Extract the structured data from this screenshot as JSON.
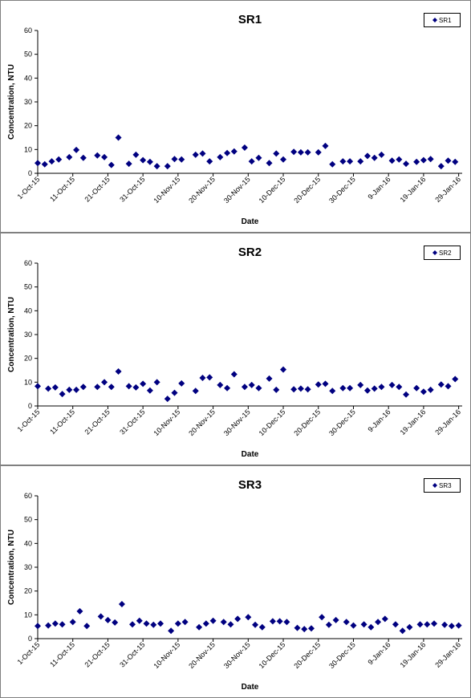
{
  "chart_data": [
    {
      "type": "scatter",
      "title": "SR1",
      "xlabel": "Date",
      "ylabel": "Concentration, NTU",
      "ylim": [
        0,
        60
      ],
      "y_ticks": [
        "0",
        "10",
        "20",
        "30",
        "40",
        "50",
        "60"
      ],
      "x_range": [
        "2015-10-01",
        "2016-01-30"
      ],
      "x_ticks": [
        {
          "date": "2015-10-01",
          "label": "1-Oct-15"
        },
        {
          "date": "2015-10-11",
          "label": "11-Oct-15"
        },
        {
          "date": "2015-10-21",
          "label": "21-Oct-15"
        },
        {
          "date": "2015-10-31",
          "label": "31-Oct-15"
        },
        {
          "date": "2015-11-10",
          "label": "10-Nov-15"
        },
        {
          "date": "2015-11-20",
          "label": "20-Nov-15"
        },
        {
          "date": "2015-11-30",
          "label": "30-Nov-15"
        },
        {
          "date": "2015-12-10",
          "label": "10-Dec-15"
        },
        {
          "date": "2015-12-20",
          "label": "20-Dec-15"
        },
        {
          "date": "2015-12-30",
          "label": "30-Dec-15"
        },
        {
          "date": "2016-01-09",
          "label": "9-Jan-16"
        },
        {
          "date": "2016-01-19",
          "label": "19-Jan-16"
        },
        {
          "date": "2016-01-29",
          "label": "29-Jan-16"
        }
      ],
      "grid": false,
      "legend": "top-right",
      "marker": "diamond",
      "marker_color": "#000080",
      "series": [
        {
          "name": "SR1",
          "points": [
            {
              "x": "2015-10-01",
              "y": 4.3
            },
            {
              "x": "2015-10-03",
              "y": 3.8
            },
            {
              "x": "2015-10-05",
              "y": 5.0
            },
            {
              "x": "2015-10-07",
              "y": 5.8
            },
            {
              "x": "2015-10-10",
              "y": 6.8
            },
            {
              "x": "2015-10-12",
              "y": 9.8
            },
            {
              "x": "2015-10-14",
              "y": 6.5
            },
            {
              "x": "2015-10-18",
              "y": 7.5
            },
            {
              "x": "2015-10-20",
              "y": 6.8
            },
            {
              "x": "2015-10-22",
              "y": 3.5
            },
            {
              "x": "2015-10-24",
              "y": 15.0
            },
            {
              "x": "2015-10-27",
              "y": 4.0
            },
            {
              "x": "2015-10-29",
              "y": 7.8
            },
            {
              "x": "2015-10-31",
              "y": 5.5
            },
            {
              "x": "2015-11-02",
              "y": 4.8
            },
            {
              "x": "2015-11-04",
              "y": 3.0
            },
            {
              "x": "2015-11-07",
              "y": 3.0
            },
            {
              "x": "2015-11-09",
              "y": 6.0
            },
            {
              "x": "2015-11-11",
              "y": 5.8
            },
            {
              "x": "2015-11-15",
              "y": 7.8
            },
            {
              "x": "2015-11-17",
              "y": 8.3
            },
            {
              "x": "2015-11-19",
              "y": 5.0
            },
            {
              "x": "2015-11-22",
              "y": 6.8
            },
            {
              "x": "2015-11-24",
              "y": 8.5
            },
            {
              "x": "2015-11-26",
              "y": 9.2
            },
            {
              "x": "2015-11-29",
              "y": 10.8
            },
            {
              "x": "2015-12-01",
              "y": 5.0
            },
            {
              "x": "2015-12-03",
              "y": 6.5
            },
            {
              "x": "2015-12-06",
              "y": 4.3
            },
            {
              "x": "2015-12-08",
              "y": 8.3
            },
            {
              "x": "2015-12-10",
              "y": 5.8
            },
            {
              "x": "2015-12-13",
              "y": 9.0
            },
            {
              "x": "2015-12-15",
              "y": 8.8
            },
            {
              "x": "2015-12-17",
              "y": 8.8
            },
            {
              "x": "2015-12-20",
              "y": 8.8
            },
            {
              "x": "2015-12-22",
              "y": 11.5
            },
            {
              "x": "2015-12-24",
              "y": 3.8
            },
            {
              "x": "2015-12-27",
              "y": 5.0
            },
            {
              "x": "2015-12-29",
              "y": 5.0
            },
            {
              "x": "2016-01-01",
              "y": 5.0
            },
            {
              "x": "2016-01-03",
              "y": 7.3
            },
            {
              "x": "2016-01-05",
              "y": 6.5
            },
            {
              "x": "2016-01-07",
              "y": 7.8
            },
            {
              "x": "2016-01-10",
              "y": 5.3
            },
            {
              "x": "2016-01-12",
              "y": 5.8
            },
            {
              "x": "2016-01-14",
              "y": 4.0
            },
            {
              "x": "2016-01-17",
              "y": 4.8
            },
            {
              "x": "2016-01-19",
              "y": 5.5
            },
            {
              "x": "2016-01-21",
              "y": 6.0
            },
            {
              "x": "2016-01-24",
              "y": 3.0
            },
            {
              "x": "2016-01-26",
              "y": 5.3
            },
            {
              "x": "2016-01-28",
              "y": 4.8
            }
          ]
        }
      ]
    },
    {
      "type": "scatter",
      "title": "SR2",
      "xlabel": "Date",
      "ylabel": "Concentration, NTU",
      "ylim": [
        0,
        60
      ],
      "y_ticks": [
        "0",
        "10",
        "20",
        "30",
        "40",
        "50",
        "60"
      ],
      "x_range": [
        "2015-10-01",
        "2016-01-30"
      ],
      "x_ticks": [
        {
          "date": "2015-10-01",
          "label": "1-Oct-15"
        },
        {
          "date": "2015-10-11",
          "label": "11-Oct-15"
        },
        {
          "date": "2015-10-21",
          "label": "21-Oct-15"
        },
        {
          "date": "2015-10-31",
          "label": "31-Oct-15"
        },
        {
          "date": "2015-11-10",
          "label": "10-Nov-15"
        },
        {
          "date": "2015-11-20",
          "label": "20-Nov-15"
        },
        {
          "date": "2015-11-30",
          "label": "30-Nov-15"
        },
        {
          "date": "2015-12-10",
          "label": "10-Dec-15"
        },
        {
          "date": "2015-12-20",
          "label": "20-Dec-15"
        },
        {
          "date": "2015-12-30",
          "label": "30-Dec-15"
        },
        {
          "date": "2016-01-09",
          "label": "9-Jan-16"
        },
        {
          "date": "2016-01-19",
          "label": "19-Jan-16"
        },
        {
          "date": "2016-01-29",
          "label": "29-Jan-16"
        }
      ],
      "grid": false,
      "legend": "top-right",
      "marker": "diamond",
      "marker_color": "#000080",
      "series": [
        {
          "name": "SR2",
          "points": [
            {
              "x": "2015-10-01",
              "y": 8.3
            },
            {
              "x": "2015-10-04",
              "y": 7.3
            },
            {
              "x": "2015-10-06",
              "y": 7.8
            },
            {
              "x": "2015-10-08",
              "y": 5.0
            },
            {
              "x": "2015-10-10",
              "y": 6.8
            },
            {
              "x": "2015-10-12",
              "y": 6.8
            },
            {
              "x": "2015-10-14",
              "y": 8.0
            },
            {
              "x": "2015-10-18",
              "y": 8.0
            },
            {
              "x": "2015-10-20",
              "y": 10.0
            },
            {
              "x": "2015-10-22",
              "y": 8.0
            },
            {
              "x": "2015-10-24",
              "y": 14.5
            },
            {
              "x": "2015-10-27",
              "y": 8.3
            },
            {
              "x": "2015-10-29",
              "y": 7.8
            },
            {
              "x": "2015-10-31",
              "y": 9.3
            },
            {
              "x": "2015-11-02",
              "y": 6.5
            },
            {
              "x": "2015-11-04",
              "y": 10.0
            },
            {
              "x": "2015-11-07",
              "y": 3.0
            },
            {
              "x": "2015-11-09",
              "y": 5.5
            },
            {
              "x": "2015-11-11",
              "y": 9.5
            },
            {
              "x": "2015-11-15",
              "y": 6.3
            },
            {
              "x": "2015-11-17",
              "y": 11.8
            },
            {
              "x": "2015-11-19",
              "y": 12.0
            },
            {
              "x": "2015-11-22",
              "y": 8.8
            },
            {
              "x": "2015-11-24",
              "y": 7.5
            },
            {
              "x": "2015-11-26",
              "y": 13.3
            },
            {
              "x": "2015-11-29",
              "y": 8.0
            },
            {
              "x": "2015-12-01",
              "y": 8.8
            },
            {
              "x": "2015-12-03",
              "y": 7.5
            },
            {
              "x": "2015-12-06",
              "y": 11.5
            },
            {
              "x": "2015-12-08",
              "y": 6.8
            },
            {
              "x": "2015-12-10",
              "y": 15.3
            },
            {
              "x": "2015-12-13",
              "y": 7.0
            },
            {
              "x": "2015-12-15",
              "y": 7.3
            },
            {
              "x": "2015-12-17",
              "y": 7.0
            },
            {
              "x": "2015-12-20",
              "y": 9.0
            },
            {
              "x": "2015-12-22",
              "y": 9.3
            },
            {
              "x": "2015-12-24",
              "y": 6.3
            },
            {
              "x": "2015-12-27",
              "y": 7.5
            },
            {
              "x": "2015-12-29",
              "y": 7.5
            },
            {
              "x": "2016-01-01",
              "y": 8.8
            },
            {
              "x": "2016-01-03",
              "y": 6.5
            },
            {
              "x": "2016-01-05",
              "y": 7.3
            },
            {
              "x": "2016-01-07",
              "y": 8.0
            },
            {
              "x": "2016-01-10",
              "y": 8.8
            },
            {
              "x": "2016-01-12",
              "y": 8.0
            },
            {
              "x": "2016-01-14",
              "y": 4.8
            },
            {
              "x": "2016-01-17",
              "y": 7.5
            },
            {
              "x": "2016-01-19",
              "y": 6.0
            },
            {
              "x": "2016-01-21",
              "y": 6.8
            },
            {
              "x": "2016-01-24",
              "y": 9.0
            },
            {
              "x": "2016-01-26",
              "y": 8.3
            },
            {
              "x": "2016-01-28",
              "y": 11.3
            }
          ]
        }
      ]
    },
    {
      "type": "scatter",
      "title": "SR3",
      "xlabel": "Date",
      "ylabel": "Concentration, NTU",
      "ylim": [
        0,
        60
      ],
      "y_ticks": [
        "0",
        "10",
        "20",
        "30",
        "40",
        "50",
        "60"
      ],
      "x_range": [
        "2015-10-01",
        "2016-01-30"
      ],
      "x_ticks": [
        {
          "date": "2015-10-01",
          "label": "1-Oct-15"
        },
        {
          "date": "2015-10-11",
          "label": "11-Oct-15"
        },
        {
          "date": "2015-10-21",
          "label": "21-Oct-15"
        },
        {
          "date": "2015-10-31",
          "label": "31-Oct-15"
        },
        {
          "date": "2015-11-10",
          "label": "10-Nov-15"
        },
        {
          "date": "2015-11-20",
          "label": "20-Nov-15"
        },
        {
          "date": "2015-11-30",
          "label": "30-Nov-15"
        },
        {
          "date": "2015-12-10",
          "label": "10-Dec-15"
        },
        {
          "date": "2015-12-20",
          "label": "20-Dec-15"
        },
        {
          "date": "2015-12-30",
          "label": "30-Dec-15"
        },
        {
          "date": "2016-01-09",
          "label": "9-Jan-16"
        },
        {
          "date": "2016-01-19",
          "label": "19-Jan-16"
        },
        {
          "date": "2016-01-29",
          "label": "29-Jan-16"
        }
      ],
      "grid": false,
      "legend": "top-right",
      "marker": "diamond",
      "marker_color": "#000080",
      "series": [
        {
          "name": "SR3",
          "points": [
            {
              "x": "2015-10-01",
              "y": 5.3
            },
            {
              "x": "2015-10-04",
              "y": 5.5
            },
            {
              "x": "2015-10-06",
              "y": 6.3
            },
            {
              "x": "2015-10-08",
              "y": 6.0
            },
            {
              "x": "2015-10-11",
              "y": 7.0
            },
            {
              "x": "2015-10-13",
              "y": 11.5
            },
            {
              "x": "2015-10-15",
              "y": 5.3
            },
            {
              "x": "2015-10-19",
              "y": 9.3
            },
            {
              "x": "2015-10-21",
              "y": 7.8
            },
            {
              "x": "2015-10-23",
              "y": 6.8
            },
            {
              "x": "2015-10-25",
              "y": 14.5
            },
            {
              "x": "2015-10-28",
              "y": 6.0
            },
            {
              "x": "2015-10-30",
              "y": 7.5
            },
            {
              "x": "2015-11-01",
              "y": 6.3
            },
            {
              "x": "2015-11-03",
              "y": 5.8
            },
            {
              "x": "2015-11-05",
              "y": 6.3
            },
            {
              "x": "2015-11-08",
              "y": 3.3
            },
            {
              "x": "2015-11-10",
              "y": 6.3
            },
            {
              "x": "2015-11-12",
              "y": 7.0
            },
            {
              "x": "2015-11-16",
              "y": 4.8
            },
            {
              "x": "2015-11-18",
              "y": 6.3
            },
            {
              "x": "2015-11-20",
              "y": 7.5
            },
            {
              "x": "2015-11-23",
              "y": 7.0
            },
            {
              "x": "2015-11-25",
              "y": 6.0
            },
            {
              "x": "2015-11-27",
              "y": 8.3
            },
            {
              "x": "2015-11-30",
              "y": 9.0
            },
            {
              "x": "2015-12-02",
              "y": 5.8
            },
            {
              "x": "2015-12-04",
              "y": 4.8
            },
            {
              "x": "2015-12-07",
              "y": 7.3
            },
            {
              "x": "2015-12-09",
              "y": 7.3
            },
            {
              "x": "2015-12-11",
              "y": 7.0
            },
            {
              "x": "2015-12-14",
              "y": 4.5
            },
            {
              "x": "2015-12-16",
              "y": 4.0
            },
            {
              "x": "2015-12-18",
              "y": 4.3
            },
            {
              "x": "2015-12-21",
              "y": 9.0
            },
            {
              "x": "2015-12-23",
              "y": 5.8
            },
            {
              "x": "2015-12-25",
              "y": 7.8
            },
            {
              "x": "2015-12-28",
              "y": 7.0
            },
            {
              "x": "2015-12-30",
              "y": 5.5
            },
            {
              "x": "2016-01-02",
              "y": 6.0
            },
            {
              "x": "2016-01-04",
              "y": 4.8
            },
            {
              "x": "2016-01-06",
              "y": 7.0
            },
            {
              "x": "2016-01-08",
              "y": 8.3
            },
            {
              "x": "2016-01-11",
              "y": 6.0
            },
            {
              "x": "2016-01-13",
              "y": 3.3
            },
            {
              "x": "2016-01-15",
              "y": 4.8
            },
            {
              "x": "2016-01-18",
              "y": 6.0
            },
            {
              "x": "2016-01-20",
              "y": 6.0
            },
            {
              "x": "2016-01-22",
              "y": 6.3
            },
            {
              "x": "2016-01-25",
              "y": 5.8
            },
            {
              "x": "2016-01-27",
              "y": 5.3
            },
            {
              "x": "2016-01-29",
              "y": 5.5
            }
          ]
        }
      ]
    }
  ]
}
